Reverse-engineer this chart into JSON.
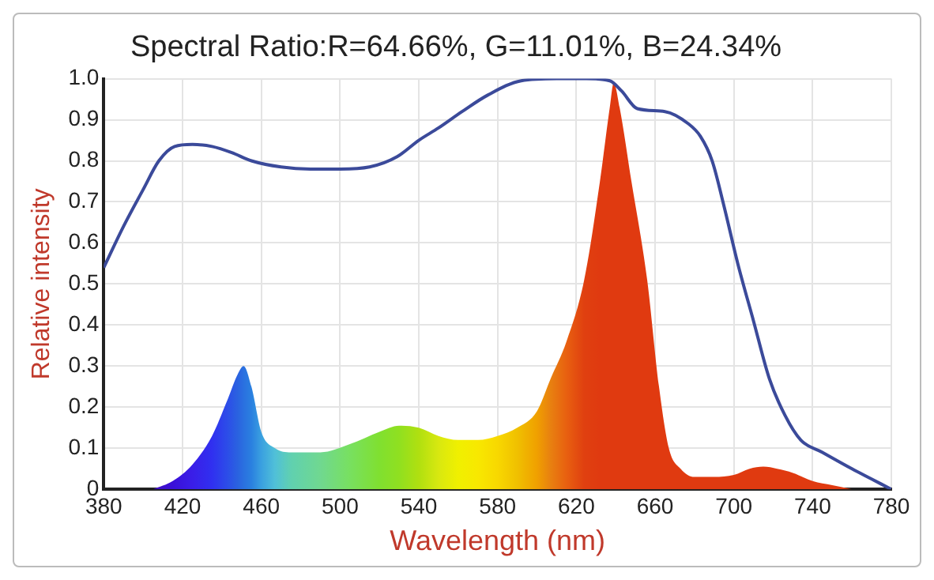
{
  "chart_data": {
    "type": "area",
    "title": "Spectral Ratio:R=64.66%, G=11.01%, B=24.34%",
    "xlabel": "Wavelength (nm)",
    "ylabel": "Relative intensity",
    "xlim": [
      380,
      780
    ],
    "xticks": [
      380,
      420,
      460,
      500,
      540,
      580,
      620,
      660,
      700,
      740,
      780
    ],
    "ylim": [
      0,
      1.0
    ],
    "yticks": [
      {
        "value": 0,
        "label": "0"
      },
      0.1,
      0.2,
      0.3,
      0.4,
      0.5,
      0.6,
      0.7,
      0.8,
      0.9,
      {
        "value": 1.0,
        "label": "1.0"
      }
    ],
    "grid": true,
    "legend": false,
    "series": [
      {
        "x": [
          405,
          415,
          425,
          435,
          443,
          448,
          451,
          455,
          460,
          467,
          475,
          490,
          505,
          520,
          530,
          540,
          550,
          560,
          570,
          580,
          590,
          600,
          607,
          615,
          624,
          632,
          637,
          639,
          642,
          648,
          656,
          662,
          667,
          673,
          680,
          690,
          700,
          708,
          715,
          722,
          730,
          740,
          750,
          760
        ],
        "values": [
          0,
          0.02,
          0.06,
          0.13,
          0.22,
          0.28,
          0.3,
          0.25,
          0.14,
          0.1,
          0.09,
          0.09,
          0.11,
          0.14,
          0.155,
          0.15,
          0.13,
          0.12,
          0.12,
          0.13,
          0.15,
          0.19,
          0.27,
          0.36,
          0.51,
          0.75,
          0.93,
          0.99,
          0.93,
          0.75,
          0.51,
          0.25,
          0.1,
          0.05,
          0.03,
          0.03,
          0.035,
          0.05,
          0.055,
          0.05,
          0.04,
          0.02,
          0.01,
          0
        ],
        "colors": [
          "#4010c0",
          "#3a10d8",
          "#3a1ee8",
          "#3030f0",
          "#2c4ee8",
          "#2a62e0",
          "#2a70e0",
          "#2a80e0",
          "#3aa0e0",
          "#50c0d8",
          "#60d0b0",
          "#70d890",
          "#78e060",
          "#80e030",
          "#90e020",
          "#b0e010",
          "#d8e810",
          "#f0f000",
          "#f8e800",
          "#f8d800",
          "#f0c000",
          "#f0a000",
          "#e88010",
          "#e86010",
          "#e04010",
          "#e03a10",
          "#e03a10",
          "#e03a10",
          "#e03a10",
          "#e03a10",
          "#e03a10",
          "#e03a10",
          "#e03a10",
          "#e03a10",
          "#e03a10",
          "#e03a10",
          "#e03a10",
          "#e03a10",
          "#e03a10",
          "#e03a10",
          "#e03a10",
          "#e03a10",
          "#e03a10",
          "#e03a10"
        ],
        "color": "#e03a10"
      },
      {
        "type": "line",
        "color": "#3b4a9a",
        "x": [
          380,
          390,
          400,
          408,
          416,
          425,
          435,
          445,
          455,
          470,
          485,
          500,
          515,
          529,
          540,
          550,
          562,
          575,
          592,
          610,
          625,
          637,
          643,
          651,
          665,
          677,
          683,
          689,
          695,
          702,
          710,
          718,
          726,
          734,
          745,
          760,
          770,
          780
        ],
        "values": [
          0.54,
          0.64,
          0.73,
          0.8,
          0.835,
          0.84,
          0.835,
          0.82,
          0.8,
          0.785,
          0.78,
          0.78,
          0.785,
          0.81,
          0.85,
          0.88,
          0.92,
          0.96,
          0.995,
          1.0,
          1.0,
          0.995,
          0.97,
          0.927,
          0.92,
          0.89,
          0.86,
          0.8,
          0.69,
          0.55,
          0.41,
          0.27,
          0.18,
          0.12,
          0.09,
          0.05,
          0.025,
          0
        ]
      }
    ]
  }
}
